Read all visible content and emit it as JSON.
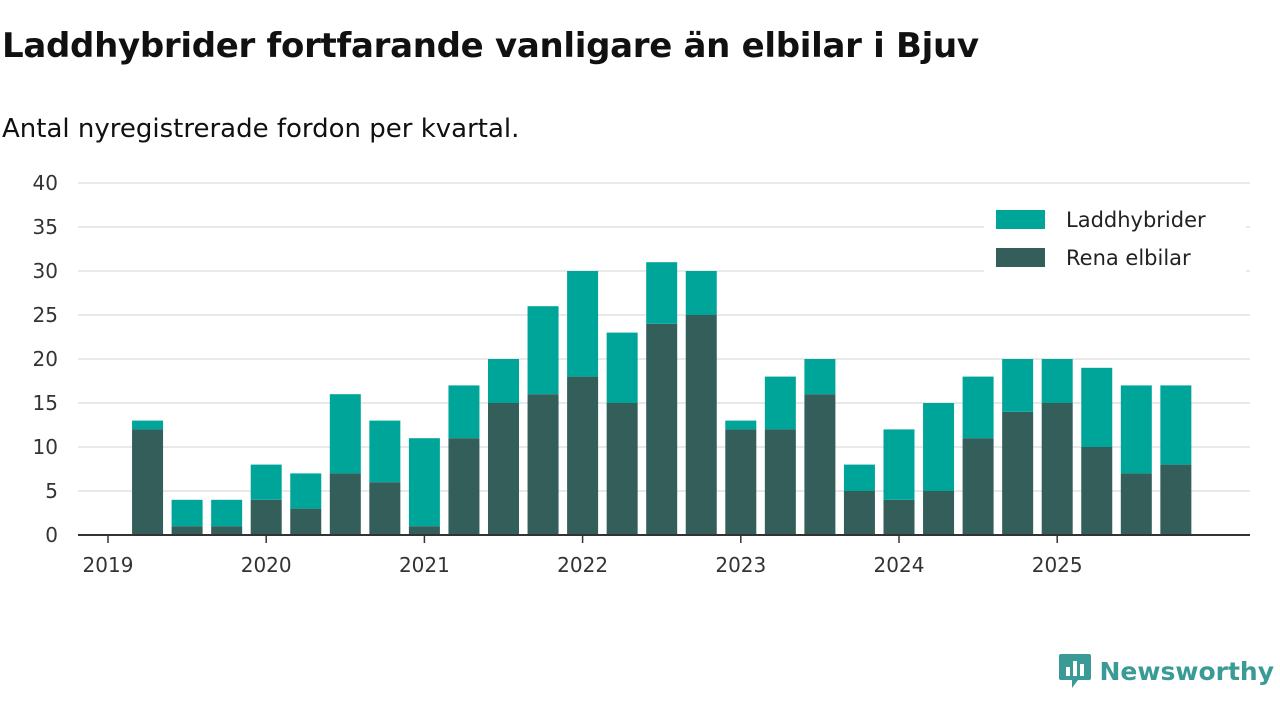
{
  "chart_data": {
    "type": "bar",
    "stacked": true,
    "title": "Laddhybrider fortfarande vanligare än elbilar i Bjuv",
    "subtitle": "Antal nyregistrerade fordon per kvartal.",
    "ylim": [
      0,
      40
    ],
    "yticks": [
      0,
      5,
      10,
      15,
      20,
      25,
      30,
      35,
      40
    ],
    "xticks": [
      "2019",
      "2020",
      "2021",
      "2022",
      "2023",
      "2024",
      "2025"
    ],
    "categories": [
      "2019 Q1",
      "2019 Q2",
      "2019 Q3",
      "2019 Q4",
      "2020 Q1",
      "2020 Q2",
      "2020 Q3",
      "2020 Q4",
      "2021 Q1",
      "2021 Q2",
      "2021 Q3",
      "2021 Q4",
      "2022 Q1",
      "2022 Q2",
      "2022 Q3",
      "2022 Q4",
      "2023 Q1",
      "2023 Q2",
      "2023 Q3",
      "2023 Q4",
      "2024 Q1",
      "2024 Q2",
      "2024 Q3",
      "2024 Q4",
      "2025 Q1",
      "2025 Q2",
      "2025 Q3",
      "2025 Q4"
    ],
    "series": [
      {
        "name": "Rena elbilar",
        "color": "#335e5a",
        "values": [
          0,
          12,
          1,
          1,
          4,
          3,
          7,
          6,
          1,
          11,
          15,
          16,
          18,
          15,
          24,
          25,
          12,
          12,
          16,
          5,
          4,
          5,
          11,
          14,
          15,
          10,
          7,
          8
        ]
      },
      {
        "name": "Laddhybrider",
        "color": "#00a59a",
        "values": [
          0,
          1,
          3,
          3,
          4,
          4,
          9,
          7,
          10,
          6,
          5,
          10,
          12,
          8,
          7,
          5,
          1,
          6,
          4,
          3,
          8,
          10,
          7,
          6,
          5,
          9,
          10,
          9
        ]
      }
    ],
    "legend": [
      "Laddhybrider",
      "Rena elbilar"
    ],
    "legend_position": "top-right"
  },
  "brand": {
    "name": "Newsworthy",
    "color": "#3a9b96"
  }
}
